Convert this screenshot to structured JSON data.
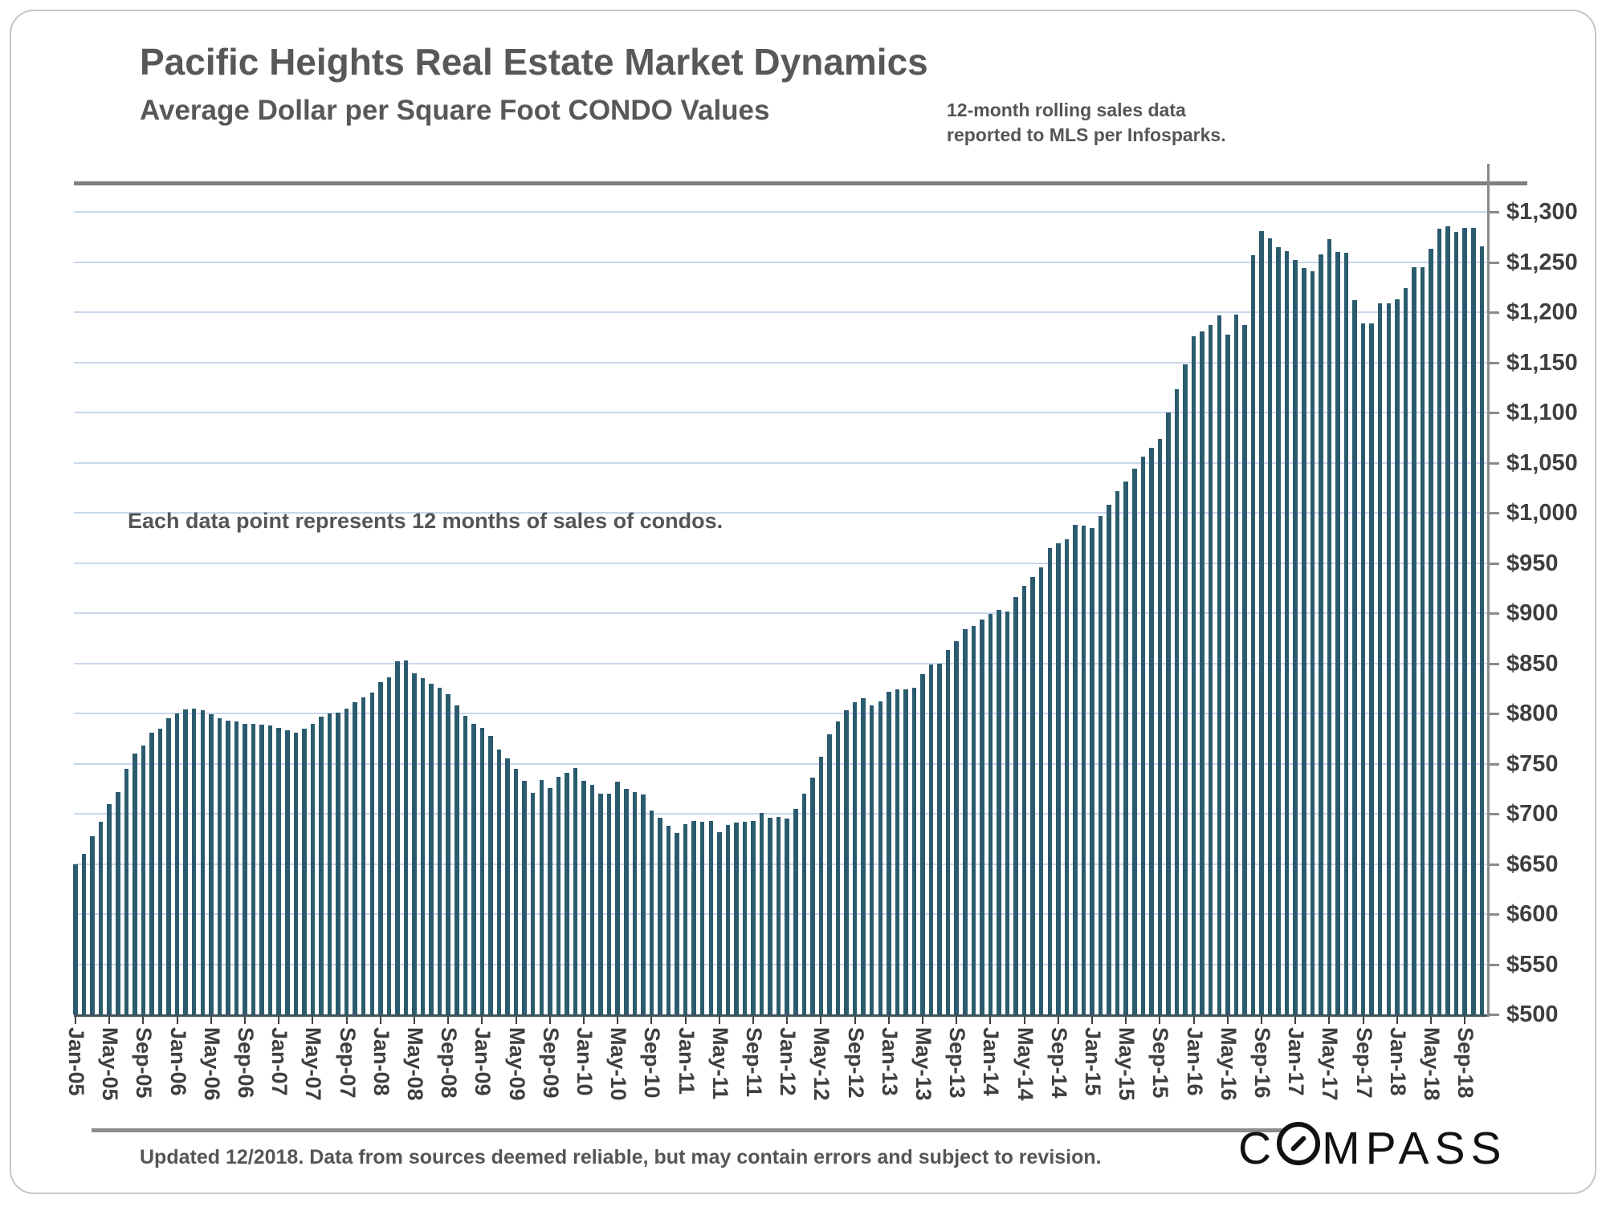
{
  "header": {
    "title": "Pacific Heights Real Estate Market Dynamics",
    "subtitle": "Average Dollar per Square Foot CONDO Values",
    "note_line1": "12-month rolling sales data",
    "note_line2": "reported to MLS per Infosparks."
  },
  "annotation": "Each data point represents 12 months of sales of condos.",
  "footer": {
    "disclaimer": "Updated 12/2018. Data from sources deemed reliable, but may contain errors and subject to revision.",
    "logo": "COMPASS"
  },
  "colors": {
    "bar": "#2b5b6e",
    "gridline": "#c9d7ec",
    "axis": "#42545a",
    "right_axis": "#8a8a8a",
    "rule": "#7f7f7f",
    "text_dark": "#58585b",
    "text_mid": "#555555",
    "label": "#3f3f3f",
    "logo": "#111111"
  },
  "chart_data": {
    "type": "bar",
    "title": "Pacific Heights Real Estate Market Dynamics",
    "subtitle": "Average Dollar per Square Foot CONDO Values",
    "ylim": [
      500,
      1300
    ],
    "ytick_step": 50,
    "ytick_values": [
      500,
      550,
      600,
      650,
      700,
      750,
      800,
      850,
      900,
      950,
      1000,
      1050,
      1100,
      1150,
      1200,
      1250,
      1300
    ],
    "ytick_labels": [
      "$500",
      "$550",
      "$600",
      "$650",
      "$700",
      "$750",
      "$800",
      "$850",
      "$900",
      "$950",
      "$1,000",
      "$1,050",
      "$1,100",
      "$1,150",
      "$1,200",
      "$1,250",
      "$1,300"
    ],
    "grid": true,
    "legend": "none",
    "x_tick_every": 4,
    "categories": [
      "Jan-05",
      "Feb-05",
      "Mar-05",
      "Apr-05",
      "May-05",
      "Jun-05",
      "Jul-05",
      "Aug-05",
      "Sep-05",
      "Oct-05",
      "Nov-05",
      "Dec-05",
      "Jan-06",
      "Feb-06",
      "Mar-06",
      "Apr-06",
      "May-06",
      "Jun-06",
      "Jul-06",
      "Aug-06",
      "Sep-06",
      "Oct-06",
      "Nov-06",
      "Dec-06",
      "Jan-07",
      "Feb-07",
      "Mar-07",
      "Apr-07",
      "May-07",
      "Jun-07",
      "Jul-07",
      "Aug-07",
      "Sep-07",
      "Oct-07",
      "Nov-07",
      "Dec-07",
      "Jan-08",
      "Feb-08",
      "Mar-08",
      "Apr-08",
      "May-08",
      "Jun-08",
      "Jul-08",
      "Aug-08",
      "Sep-08",
      "Oct-08",
      "Nov-08",
      "Dec-08",
      "Jan-09",
      "Feb-09",
      "Mar-09",
      "Apr-09",
      "May-09",
      "Jun-09",
      "Jul-09",
      "Aug-09",
      "Sep-09",
      "Oct-09",
      "Nov-09",
      "Dec-09",
      "Jan-10",
      "Feb-10",
      "Mar-10",
      "Apr-10",
      "May-10",
      "Jun-10",
      "Jul-10",
      "Aug-10",
      "Sep-10",
      "Oct-10",
      "Nov-10",
      "Dec-10",
      "Jan-11",
      "Feb-11",
      "Mar-11",
      "Apr-11",
      "May-11",
      "Jun-11",
      "Jul-11",
      "Aug-11",
      "Sep-11",
      "Oct-11",
      "Nov-11",
      "Dec-11",
      "Jan-12",
      "Feb-12",
      "Mar-12",
      "Apr-12",
      "May-12",
      "Jun-12",
      "Jul-12",
      "Aug-12",
      "Sep-12",
      "Oct-12",
      "Nov-12",
      "Dec-12",
      "Jan-13",
      "Feb-13",
      "Mar-13",
      "Apr-13",
      "May-13",
      "Jun-13",
      "Jul-13",
      "Aug-13",
      "Sep-13",
      "Oct-13",
      "Nov-13",
      "Dec-13",
      "Jan-14",
      "Feb-14",
      "Mar-14",
      "Apr-14",
      "May-14",
      "Jun-14",
      "Jul-14",
      "Aug-14",
      "Sep-14",
      "Oct-14",
      "Nov-14",
      "Dec-14",
      "Jan-15",
      "Feb-15",
      "Mar-15",
      "Apr-15",
      "May-15",
      "Jun-15",
      "Jul-15",
      "Aug-15",
      "Sep-15",
      "Oct-15",
      "Nov-15",
      "Dec-15",
      "Jan-16",
      "Feb-16",
      "Mar-16",
      "Apr-16",
      "May-16",
      "Jun-16",
      "Jul-16",
      "Aug-16",
      "Sep-16",
      "Oct-16",
      "Nov-16",
      "Dec-16",
      "Jan-17",
      "Feb-17",
      "Mar-17",
      "Apr-17",
      "May-17",
      "Jun-17",
      "Jul-17",
      "Aug-17",
      "Sep-17",
      "Oct-17",
      "Nov-17",
      "Dec-17",
      "Jan-18",
      "Feb-18",
      "Mar-18",
      "Apr-18",
      "May-18",
      "Jun-18",
      "Jul-18",
      "Aug-18",
      "Sep-18",
      "Oct-18",
      "Nov-18"
    ],
    "values": [
      650,
      660,
      678,
      692,
      710,
      722,
      745,
      760,
      768,
      781,
      785,
      795,
      800,
      804,
      805,
      803,
      799,
      795,
      793,
      792,
      790,
      790,
      789,
      788,
      786,
      783,
      781,
      785,
      790,
      797,
      800,
      801,
      805,
      811,
      816,
      821,
      831,
      836,
      852,
      853,
      840,
      835,
      830,
      826,
      819,
      808,
      798,
      790,
      786,
      778,
      764,
      755,
      745,
      733,
      721,
      734,
      726,
      737,
      741,
      746,
      733,
      729,
      720,
      720,
      732,
      725,
      722,
      719,
      703,
      696,
      688,
      681,
      690,
      693,
      692,
      693,
      682,
      689,
      691,
      692,
      693,
      701,
      696,
      697,
      695,
      705,
      720,
      736,
      757,
      779,
      792,
      803,
      811,
      815,
      808,
      812,
      822,
      824,
      824,
      826,
      839,
      849,
      850,
      863,
      872,
      884,
      887,
      894,
      899,
      903,
      902,
      916,
      927,
      936,
      946,
      965,
      970,
      974,
      988,
      987,
      985,
      997,
      1008,
      1022,
      1031,
      1044,
      1056,
      1065,
      1074,
      1100,
      1123,
      1148,
      1176,
      1181,
      1187,
      1197,
      1178,
      1198,
      1187,
      1257,
      1281,
      1274,
      1265,
      1261,
      1252,
      1244,
      1241,
      1258,
      1273,
      1260,
      1259,
      1212,
      1189,
      1189,
      1209,
      1209,
      1213,
      1224,
      1245,
      1245,
      1263,
      1283,
      1286,
      1280,
      1284,
      1284,
      1266
    ]
  }
}
